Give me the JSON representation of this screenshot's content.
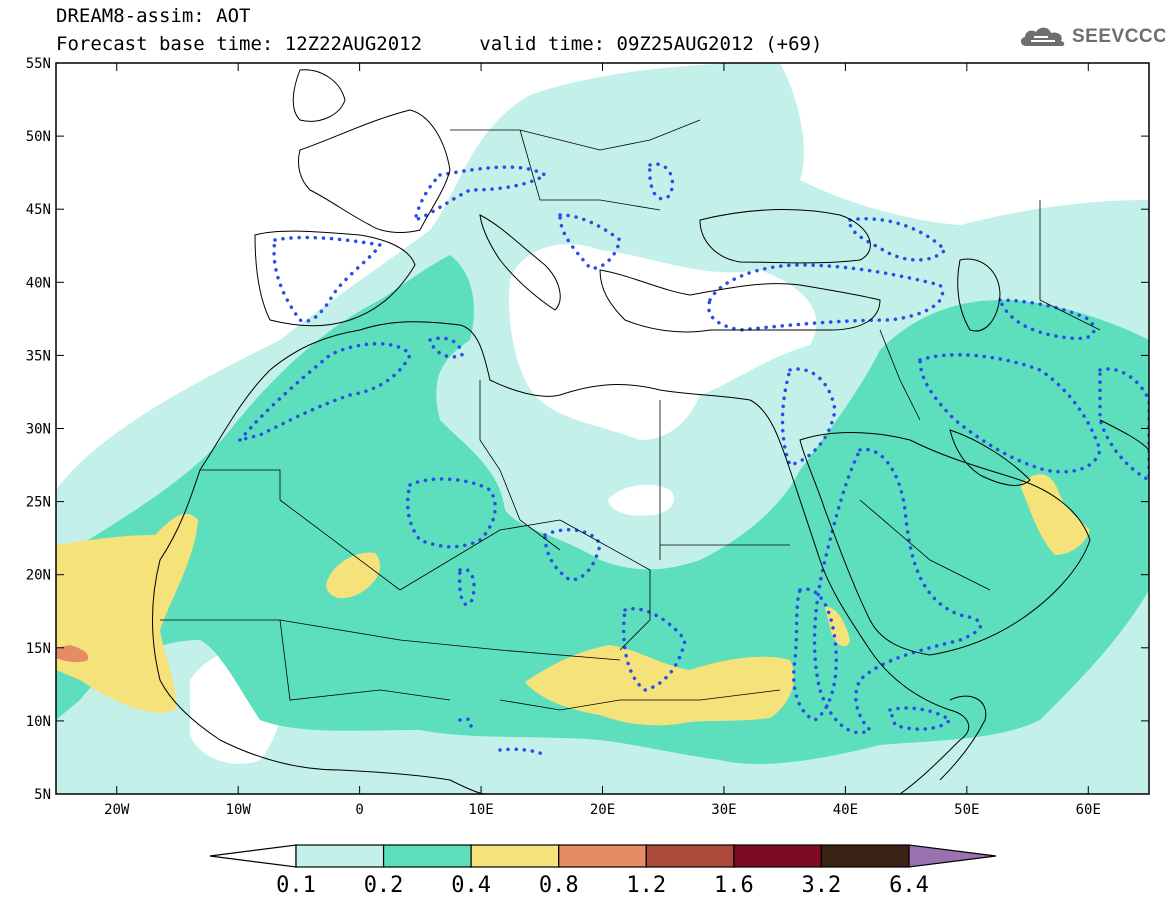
{
  "header": {
    "line1": "DREAM8-assim: AOT",
    "base_time_label": "Forecast base time: 12Z22AUG2012",
    "valid_time_label": "valid time: 09Z25AUG2012 (+69)"
  },
  "logo": {
    "text": "SEEVCCC",
    "icon": "cloud-icon",
    "color": "#6e6e6e"
  },
  "map": {
    "lon_range": [
      -25,
      65
    ],
    "lat_range": [
      5,
      55
    ],
    "lat_ticks": [
      {
        "value": 55,
        "label": "55N"
      },
      {
        "value": 50,
        "label": "50N"
      },
      {
        "value": 45,
        "label": "45N"
      },
      {
        "value": 40,
        "label": "40N"
      },
      {
        "value": 35,
        "label": "35N"
      },
      {
        "value": 30,
        "label": "30N"
      },
      {
        "value": 25,
        "label": "25N"
      },
      {
        "value": 20,
        "label": "20N"
      },
      {
        "value": 15,
        "label": "15N"
      },
      {
        "value": 10,
        "label": "10N"
      },
      {
        "value": 5,
        "label": "5N"
      }
    ],
    "lon_ticks": [
      {
        "value": -20,
        "label": "20W"
      },
      {
        "value": -10,
        "label": "10W"
      },
      {
        "value": 0,
        "label": "0"
      },
      {
        "value": 10,
        "label": "10E"
      },
      {
        "value": 20,
        "label": "20E"
      },
      {
        "value": 30,
        "label": "30E"
      },
      {
        "value": 40,
        "label": "40E"
      },
      {
        "value": 50,
        "label": "50E"
      },
      {
        "value": 60,
        "label": "60E"
      }
    ]
  },
  "colorbar": {
    "left_arrow_color": "#ffffff",
    "right_arrow_color": "#9b72b0",
    "segments": [
      "#c3f1ea",
      "#5ddfbd",
      "#f6e27b",
      "#e58c67",
      "#ad4b3b",
      "#7e0a23",
      "#3b2316"
    ],
    "labels": [
      "0.1",
      "0.2",
      "0.4",
      "0.8",
      "1.2",
      "1.6",
      "3.2",
      "6.4"
    ]
  },
  "colors": {
    "light_aqua": "#c3f1ea",
    "aqua": "#5ddfbd",
    "yellow": "#f6e27b",
    "orange": "#e58c67",
    "dots": "#2a4de8"
  }
}
